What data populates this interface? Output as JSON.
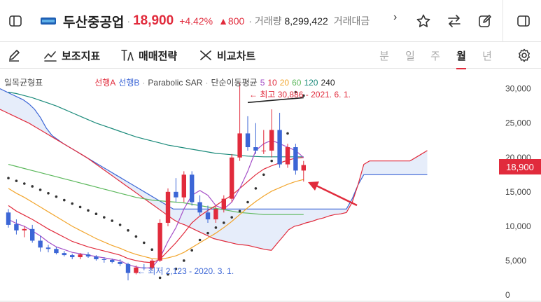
{
  "header": {
    "stock_name": "두산중공업",
    "price": "18,900",
    "change_pct": "+4.42%",
    "change_amt": "▲800",
    "volume_label": "· 거래량",
    "volume_value": "8,299,422",
    "amount_label": "거래대금",
    "separator": "·",
    "chevron": "›"
  },
  "toolbar": {
    "indicators_label": "보조지표",
    "strategy_label": "매매전략",
    "compare_label": "비교차트",
    "periods": [
      "분",
      "일",
      "주",
      "월",
      "년"
    ],
    "active_period": "월"
  },
  "legend": {
    "ichimoku": "일목균형표",
    "span_a": "선행A",
    "span_b": "선행B",
    "dot": "·",
    "psar": "Parabolic SAR",
    "ma_label": "단순이동평균",
    "ma_periods": [
      "5",
      "10",
      "20",
      "60",
      "120",
      "240"
    ]
  },
  "annotations": {
    "high": "← 최고 30,886 - 2021. 6. 1.",
    "low": "← 최저 2,123 - 2020. 3. 1."
  },
  "price_tag": "18,900",
  "colors": {
    "up": "#e12b3c",
    "down": "#3c66d6",
    "ma5": "#a550c8",
    "ma10": "#e12b3c",
    "ma20": "#f2a52c",
    "ma60": "#5cb85c",
    "ma120": "#1a8a7a",
    "ma240": "#222222"
  },
  "chart_data": {
    "type": "candlestick",
    "y_ticks": [
      "30,000",
      "25,000",
      "20,000",
      "15,000",
      "10,000",
      "5,000",
      "0"
    ],
    "ylim": [
      0,
      32000
    ],
    "candles": [
      {
        "o": 12000,
        "h": 12500,
        "l": 9800,
        "c": 10200
      },
      {
        "o": 10300,
        "h": 11000,
        "l": 8800,
        "c": 9400
      },
      {
        "o": 9400,
        "h": 10000,
        "l": 8400,
        "c": 9600
      },
      {
        "o": 9600,
        "h": 10200,
        "l": 7600,
        "c": 7900
      },
      {
        "o": 7900,
        "h": 8600,
        "l": 6300,
        "c": 6900
      },
      {
        "o": 6900,
        "h": 7300,
        "l": 6200,
        "c": 6700
      },
      {
        "o": 6700,
        "h": 7000,
        "l": 5900,
        "c": 6100
      },
      {
        "o": 6100,
        "h": 6400,
        "l": 5600,
        "c": 5800
      },
      {
        "o": 5800,
        "h": 6000,
        "l": 5200,
        "c": 5500
      },
      {
        "o": 5500,
        "h": 6100,
        "l": 5200,
        "c": 5900
      },
      {
        "o": 5900,
        "h": 6200,
        "l": 5400,
        "c": 5600
      },
      {
        "o": 5600,
        "h": 5800,
        "l": 5000,
        "c": 5200
      },
      {
        "o": 5200,
        "h": 5500,
        "l": 4700,
        "c": 5100
      },
      {
        "o": 5100,
        "h": 5300,
        "l": 4600,
        "c": 4800
      },
      {
        "o": 4800,
        "h": 5200,
        "l": 4200,
        "c": 4500
      },
      {
        "o": 4500,
        "h": 4700,
        "l": 2123,
        "c": 3200
      },
      {
        "o": 3200,
        "h": 4300,
        "l": 3000,
        "c": 4000
      },
      {
        "o": 4000,
        "h": 4500,
        "l": 3600,
        "c": 3900
      },
      {
        "o": 3900,
        "h": 5200,
        "l": 3700,
        "c": 5000
      },
      {
        "o": 5000,
        "h": 11000,
        "l": 4800,
        "c": 10500
      },
      {
        "o": 10500,
        "h": 15500,
        "l": 10000,
        "c": 15000
      },
      {
        "o": 15000,
        "h": 17000,
        "l": 13500,
        "c": 14200
      },
      {
        "o": 14200,
        "h": 18000,
        "l": 13500,
        "c": 17500
      },
      {
        "o": 17500,
        "h": 18000,
        "l": 13000,
        "c": 13500
      },
      {
        "o": 13500,
        "h": 14500,
        "l": 11500,
        "c": 12000
      },
      {
        "o": 12000,
        "h": 13000,
        "l": 10500,
        "c": 11000
      },
      {
        "o": 11000,
        "h": 13000,
        "l": 10500,
        "c": 12500
      },
      {
        "o": 12500,
        "h": 14500,
        "l": 12000,
        "c": 14000
      },
      {
        "o": 14000,
        "h": 20500,
        "l": 13500,
        "c": 20000
      },
      {
        "o": 20000,
        "h": 30886,
        "l": 19500,
        "c": 23500
      },
      {
        "o": 23500,
        "h": 26000,
        "l": 21000,
        "c": 21500
      },
      {
        "o": 21500,
        "h": 25000,
        "l": 20500,
        "c": 21000
      },
      {
        "o": 21000,
        "h": 24000,
        "l": 20500,
        "c": 21000
      },
      {
        "o": 21000,
        "h": 27000,
        "l": 20000,
        "c": 24000
      },
      {
        "o": 24000,
        "h": 26500,
        "l": 18500,
        "c": 19000
      },
      {
        "o": 19000,
        "h": 22000,
        "l": 18500,
        "c": 21500
      },
      {
        "o": 21500,
        "h": 22000,
        "l": 17500,
        "c": 18100
      },
      {
        "o": 18100,
        "h": 19500,
        "l": 16500,
        "c": 18900
      }
    ],
    "ma": {
      "ma5": [
        11000,
        10400,
        10000,
        9300,
        8600,
        7700,
        7000,
        6600,
        6200,
        6000,
        5800,
        5600,
        5400,
        5200,
        5000,
        4400,
        4100,
        3900,
        4000,
        5400,
        7800,
        9800,
        12500,
        14500,
        15200,
        14500,
        13000,
        12500,
        13500,
        15500,
        18000,
        21000,
        22000,
        22500,
        22000,
        21500,
        21000,
        20000
      ],
      "ma10": [
        13000,
        12200,
        11600,
        11000,
        10300,
        9600,
        9000,
        8400,
        7800,
        7400,
        7000,
        6700,
        6400,
        6100,
        5800,
        5300,
        5000,
        4800,
        4700,
        5200,
        6400,
        7600,
        9000,
        10500,
        11500,
        12300,
        13000,
        13800,
        14500,
        15500,
        16500,
        17500,
        18300,
        18800,
        19200,
        19600,
        19900,
        20000
      ],
      "ma20": [
        15500,
        14800,
        14200,
        13500,
        12800,
        12100,
        11400,
        10700,
        10000,
        9400,
        8800,
        8200,
        7700,
        7200,
        6800,
        6300,
        5900,
        5600,
        5300,
        5200,
        5400,
        5700,
        6200,
        6900,
        7600,
        8300,
        9000,
        9800,
        10700,
        11700,
        12700,
        13600,
        14400,
        15100,
        15600,
        16100,
        16500,
        16800
      ],
      "ma60": [
        19000,
        18700,
        18400,
        18100,
        17800,
        17500,
        17200,
        16900,
        16600,
        16300,
        16000,
        15700,
        15400,
        15100,
        14800,
        14500,
        14200,
        14000,
        13800,
        13700,
        13600,
        13500,
        13400,
        13200,
        13000,
        12800,
        12600,
        12400,
        12200,
        12000,
        11900,
        11800,
        11700,
        11700,
        11700,
        11700,
        11700,
        11700
      ],
      "ma120": [
        29500,
        29300,
        29000,
        28700,
        28300,
        27900,
        27500,
        27000,
        26500,
        26000,
        25500,
        25000,
        24600,
        24200,
        23800,
        23400,
        23000,
        22700,
        22400,
        22100,
        21800,
        21600,
        21400,
        21200,
        21000,
        20800,
        20600,
        20500,
        20400,
        20300,
        20200,
        20150,
        20100,
        20100,
        20100,
        20100,
        20100,
        20100
      ],
      "ma240": [
        null,
        null,
        null,
        null,
        null,
        null,
        null,
        null,
        null,
        null,
        null,
        null,
        null,
        null,
        null,
        null,
        null,
        null,
        null,
        null,
        null,
        null,
        null,
        null,
        null,
        null,
        null,
        null,
        null,
        null,
        28000,
        28100,
        28200,
        28300,
        28400,
        28500,
        28600,
        28700
      ]
    },
    "psar": [
      17000,
      16600,
      16200,
      15800,
      15300,
      14800,
      14300,
      13800,
      13300,
      12800,
      12300,
      11800,
      11300,
      10800,
      10200,
      9400,
      8500,
      7600,
      6600,
      2500,
      3000,
      3800,
      5000,
      6500,
      8000,
      9000,
      9800,
      10500,
      11300,
      12200,
      13500,
      15500,
      17500,
      19500,
      21500,
      23500,
      29500,
      29000
    ],
    "cloud": {
      "span_a": [
        30000,
        29600,
        29200,
        28800,
        28400,
        27800,
        27000,
        25800,
        24300,
        23200,
        22600,
        22000,
        21500,
        21000,
        20500,
        20000,
        19500,
        19000,
        18500,
        18000,
        17500,
        17000,
        16500,
        16000,
        15500,
        15000,
        14500,
        14000,
        13500,
        13000,
        12500,
        12500,
        12500,
        12500,
        12500,
        12500,
        12500,
        12500,
        12500,
        12500,
        12500,
        12500,
        12500,
        12500,
        12500,
        12500,
        12500,
        12500,
        12500,
        12500,
        12500,
        12500,
        12500,
        12500,
        12500,
        12500,
        12500,
        12500,
        12500,
        12500,
        12500,
        14000,
        16000,
        17500,
        17500,
        17500,
        17500,
        17500,
        17500,
        17500,
        17500,
        17500,
        17500,
        17500,
        17500
      ],
      "span_b": [
        27000,
        26600,
        26200,
        25800,
        25400,
        25000,
        24500,
        24000,
        23500,
        23000,
        22500,
        22000,
        21500,
        21000,
        20500,
        20000,
        19400,
        18800,
        18200,
        17600,
        17000,
        16400,
        15800,
        15200,
        14600,
        14000,
        13400,
        12800,
        12200,
        11600,
        11000,
        10500,
        10200,
        9800,
        9400,
        9000,
        8600,
        8200,
        8000,
        7800,
        7600,
        7400,
        7300,
        7200,
        7000,
        6800,
        6600,
        6500,
        7500,
        8500,
        9500,
        10000,
        10200,
        10500,
        10700,
        11000,
        11200,
        11500,
        11700,
        11800,
        12000,
        13500,
        16000,
        19000,
        19500,
        19500,
        19500,
        19500,
        19500,
        19500,
        19500,
        19500,
        20000,
        20500,
        21000
      ]
    }
  }
}
